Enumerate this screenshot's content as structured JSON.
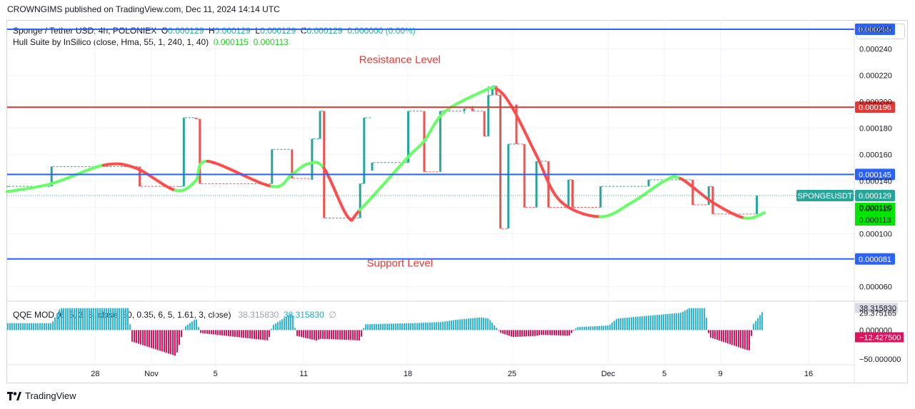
{
  "caption": "CROWNGIMS published on TradingView.com, Dec 11, 2024 14:14 UTC",
  "currency_button": "USDT",
  "legend": {
    "symbol": "Sponge / Tether USD, 4h, POLONIEX",
    "o_label": "O",
    "o": "0.000129",
    "h_label": "H",
    "h": "0.000129",
    "l_label": "L",
    "l": "0.000129",
    "c_label": "C",
    "c": "0.000129",
    "change": "0.000000 (0.00%)",
    "hull_name": "Hull Suite by InSilico (close, Hma, 55, 1, 240, 1, 40)",
    "hull_v1": "0.000115",
    "hull_v2": "0.000113"
  },
  "qqe_legend": {
    "name": "QQE MOD (6, 5, 3, 3, close, 50, 0.35, 6, 5, 1.61, 3, close)",
    "v1": "38.315830",
    "v2": "38.315830",
    "symbol": "∅"
  },
  "footer": {
    "brand": "TradingView"
  },
  "colors": {
    "up": "#26a69a",
    "down": "#ef5350",
    "hull_up": "#66ff66",
    "hull_down": "#ff4d4d",
    "hline_blue": "#2962ff",
    "hline_red": "#e53935",
    "qqe_up": "#2ab7d9",
    "qqe_down": "#e0115f"
  },
  "chart_data": {
    "type": "line",
    "title": "",
    "price_axis": {
      "ylim": [
        4.9e-05,
        0.000262
      ],
      "ticks": [
        "0.000240",
        "0.000220",
        "0.000200",
        "0.000180",
        "0.000160",
        "0.000140",
        "0.000120",
        "0.000100",
        "0.000060"
      ],
      "tick_values": [
        0.00024,
        0.00022,
        0.0002,
        0.00018,
        0.00016,
        0.00014,
        0.00012,
        0.0001,
        6e-05
      ],
      "hidden_top_label": "0.000255"
    },
    "x_axis": {
      "labels": [
        "28",
        "Nov",
        "5",
        "11",
        "18",
        "25",
        "Dec",
        "5",
        "9",
        "16"
      ],
      "positions": [
        0.11,
        0.18,
        0.26,
        0.37,
        0.5,
        0.63,
        0.75,
        0.82,
        0.89,
        1.0
      ]
    },
    "annotations": [
      {
        "text": "Resistance Level",
        "x": 0.49,
        "y": 0.000232,
        "color": "#e53935"
      },
      {
        "text": "Support Level",
        "x": 0.49,
        "y": 7.8e-05,
        "color": "#e53935"
      }
    ],
    "hlines": [
      {
        "value": 0.000255,
        "color": "#2962ff",
        "label": "0.000255",
        "label_bg": "#2962ff"
      },
      {
        "value": 0.000196,
        "color": "#e53935",
        "label": "0.000196",
        "label_bg": "#e53935"
      },
      {
        "value": 0.000145,
        "color": "#2962ff",
        "label": "0.000145",
        "label_bg": "#2962ff"
      },
      {
        "value": 8.1e-05,
        "color": "#2962ff",
        "label": "0.000081",
        "label_bg": "#2962ff"
      }
    ],
    "last_price": {
      "value": 0.000129,
      "symbol_label": "SPONGEUSDT",
      "label": "0.000129",
      "color": "#26a69a"
    },
    "hull_labels": [
      {
        "value": 0.000115,
        "label": "0.000115",
        "color": "#00e600"
      },
      {
        "value": 0.000113,
        "label": "0.000113",
        "color": "#00e600"
      }
    ],
    "candles": [
      [
        0.0,
        0.000136,
        0.000136,
        0.000136,
        0.000136
      ],
      [
        0.055,
        0.000136,
        0.000151,
        0.000136,
        0.000151
      ],
      [
        0.15,
        0.000151,
        0.000151,
        0.000151,
        0.000151
      ],
      [
        0.165,
        0.000151,
        0.000151,
        0.000136,
        0.000136
      ],
      [
        0.215,
        0.000136,
        0.000136,
        0.000136,
        0.000136
      ],
      [
        0.22,
        0.000136,
        0.000188,
        0.000136,
        0.000188
      ],
      [
        0.235,
        0.000188,
        0.000188,
        0.000187,
        0.000187
      ],
      [
        0.24,
        0.000187,
        0.000187,
        0.000138,
        0.000138
      ],
      [
        0.33,
        0.000138,
        0.000164,
        0.000138,
        0.000164
      ],
      [
        0.355,
        0.000164,
        0.000164,
        0.000142,
        0.000142
      ],
      [
        0.38,
        0.000141,
        0.000172,
        0.000141,
        0.000172
      ],
      [
        0.39,
        0.000172,
        0.000193,
        0.000172,
        0.000193
      ],
      [
        0.395,
        0.000193,
        0.000193,
        0.000112,
        0.000112
      ],
      [
        0.44,
        0.000112,
        0.000138,
        0.000112,
        0.000138
      ],
      [
        0.445,
        0.000138,
        0.000188,
        0.000138,
        0.000188
      ],
      [
        0.455,
        0.000148,
        0.000154,
        0.000148,
        0.000154
      ],
      [
        0.5,
        0.000154,
        0.000193,
        0.000154,
        0.000193
      ],
      [
        0.52,
        0.000193,
        0.000193,
        0.000147,
        0.000147
      ],
      [
        0.54,
        0.000147,
        0.000193,
        0.000147,
        0.000193
      ],
      [
        0.57,
        0.000193,
        0.000195,
        0.000191,
        0.000195
      ],
      [
        0.58,
        0.000195,
        0.000197,
        0.000193,
        0.000193
      ],
      [
        0.595,
        0.000193,
        0.000193,
        0.000174,
        0.000174
      ],
      [
        0.6,
        0.000174,
        0.000212,
        0.000174,
        0.000205
      ],
      [
        0.605,
        0.000205,
        0.000212,
        0.000205,
        0.000212
      ],
      [
        0.61,
        0.000212,
        0.000212,
        0.000205,
        0.000205
      ],
      [
        0.615,
        0.000205,
        0.000206,
        0.000104,
        0.000104
      ],
      [
        0.625,
        0.000104,
        0.000168,
        0.000104,
        0.000168
      ],
      [
        0.635,
        0.000198,
        0.000198,
        0.000168,
        0.000168
      ],
      [
        0.645,
        0.000168,
        0.000168,
        0.00012,
        0.00012
      ],
      [
        0.66,
        0.00012,
        0.000155,
        0.00012,
        0.000155
      ],
      [
        0.675,
        0.000155,
        0.000155,
        0.00012,
        0.00012
      ],
      [
        0.7,
        0.00012,
        0.000141,
        0.00012,
        0.000141
      ],
      [
        0.705,
        0.000141,
        0.000141,
        0.00012,
        0.00012
      ],
      [
        0.74,
        0.00012,
        0.000136,
        0.00012,
        0.000136
      ],
      [
        0.8,
        0.000136,
        0.000141,
        0.000136,
        0.000141
      ],
      [
        0.855,
        0.000141,
        0.000141,
        0.000122,
        0.000122
      ],
      [
        0.875,
        0.000122,
        0.000136,
        0.000122,
        0.000136
      ],
      [
        0.88,
        0.000136,
        0.000136,
        0.000115,
        0.000115
      ],
      [
        0.935,
        0.000115,
        0.000129,
        0.000115,
        0.000129
      ]
    ],
    "hull_x": [
      0.0,
      0.055,
      0.12,
      0.16,
      0.21,
      0.235,
      0.25,
      0.33,
      0.355,
      0.375,
      0.395,
      0.425,
      0.44,
      0.5,
      0.52,
      0.545,
      0.59,
      0.61,
      0.63,
      0.66,
      0.69,
      0.74,
      0.78,
      0.82,
      0.84,
      0.88,
      0.92,
      0.945
    ],
    "hull_y": [
      0.000132,
      0.000138,
      0.000152,
      0.00015,
      0.000133,
      0.00014,
      0.000155,
      0.000136,
      0.000145,
      0.000153,
      0.00015,
      0.000113,
      0.000118,
      0.000158,
      0.00017,
      0.000192,
      0.000207,
      0.00021,
      0.000196,
      0.00016,
      0.000125,
      0.000113,
      0.000124,
      0.00014,
      0.000142,
      0.000124,
      0.000112,
      0.000116
    ],
    "hull_trend": [
      "up",
      "up",
      "down",
      "down",
      "up",
      "up",
      "down",
      "up",
      "up",
      "up",
      "down",
      "down",
      "up",
      "up",
      "up",
      "up",
      "up",
      "down",
      "down",
      "down",
      "down",
      "up",
      "up",
      "up",
      "down",
      "down",
      "up"
    ],
    "qqe_axis": {
      "ylim": [
        -60,
        45
      ],
      "ticks": [
        {
          "value": 38.31583,
          "label": "38.315830",
          "style": "box-light"
        },
        {
          "value": 29.375165,
          "label": "29.375165",
          "style": "plain"
        },
        {
          "value": 0,
          "label": "0.000000",
          "style": "plain"
        },
        {
          "value": -12.4275,
          "label": "−12.427500",
          "style": "box-pink"
        },
        {
          "value": -50,
          "label": "−50.000000",
          "style": "plain"
        }
      ]
    },
    "qqe_x": [
      0.0,
      0.055,
      0.065,
      0.15,
      0.155,
      0.21,
      0.22,
      0.235,
      0.24,
      0.325,
      0.33,
      0.355,
      0.36,
      0.385,
      0.39,
      0.44,
      0.445,
      0.5,
      0.505,
      0.54,
      0.56,
      0.59,
      0.6,
      0.615,
      0.63,
      0.66,
      0.665,
      0.7,
      0.71,
      0.75,
      0.76,
      0.84,
      0.85,
      0.87,
      0.875,
      0.925,
      0.93,
      0.945
    ],
    "qqe_y": [
      12,
      12,
      38,
      38,
      -20,
      -45,
      5,
      20,
      -5,
      -18,
      8,
      30,
      -10,
      -18,
      -15,
      -18,
      10,
      12,
      12,
      14,
      18,
      22,
      20,
      -5,
      -12,
      -10,
      -8,
      -10,
      5,
      8,
      20,
      30,
      38,
      38,
      -12,
      -36,
      10,
      38
    ]
  }
}
